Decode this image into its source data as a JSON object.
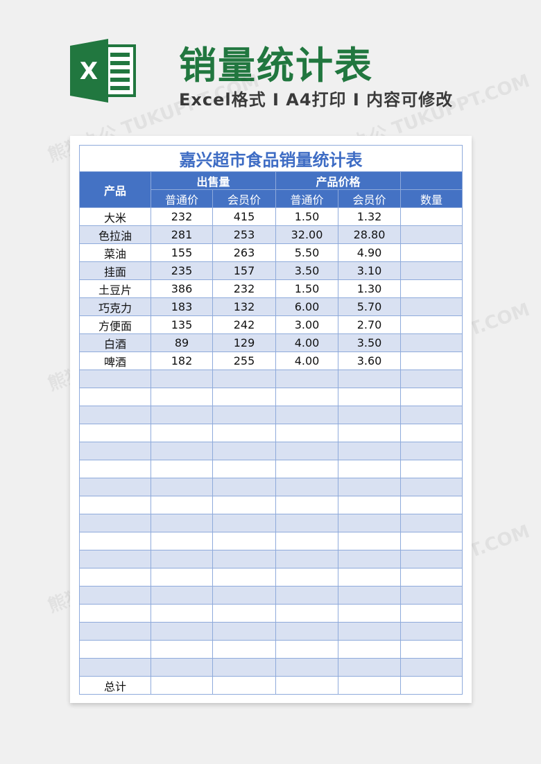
{
  "banner": {
    "title": "销量统计表",
    "subtitle": "Excel格式 I A4打印 I 内容可修改",
    "logo_icon": "excel-icon",
    "logo_color": "#21773f"
  },
  "watermark": "熊猫办公 TUKUPPT.COM",
  "table": {
    "title": "嘉兴超市食品销量统计表",
    "header": {
      "product": "产品",
      "sales": "出售量",
      "price": "产品价格",
      "quantity": "数量",
      "regular": "普通价",
      "member": "会员价"
    },
    "rows": [
      [
        "大米",
        "232",
        "415",
        "1.50",
        "1.32",
        ""
      ],
      [
        "色拉油",
        "281",
        "253",
        "32.00",
        "28.80",
        ""
      ],
      [
        "菜油",
        "155",
        "263",
        "5.50",
        "4.90",
        ""
      ],
      [
        "挂面",
        "235",
        "157",
        "3.50",
        "3.10",
        ""
      ],
      [
        "土豆片",
        "386",
        "232",
        "1.50",
        "1.30",
        ""
      ],
      [
        "巧克力",
        "183",
        "132",
        "6.00",
        "5.70",
        ""
      ],
      [
        "方便面",
        "135",
        "242",
        "3.00",
        "2.70",
        ""
      ],
      [
        "白酒",
        "89",
        "129",
        "4.00",
        "3.50",
        ""
      ],
      [
        "啤酒",
        "182",
        "255",
        "4.00",
        "3.60",
        ""
      ]
    ],
    "empty_rows": 17,
    "total_label": "总计",
    "colors": {
      "header": "#4472c4",
      "stripe": "#d9e1f2",
      "border": "#8eaadb",
      "title": "#3e6cc4"
    }
  }
}
